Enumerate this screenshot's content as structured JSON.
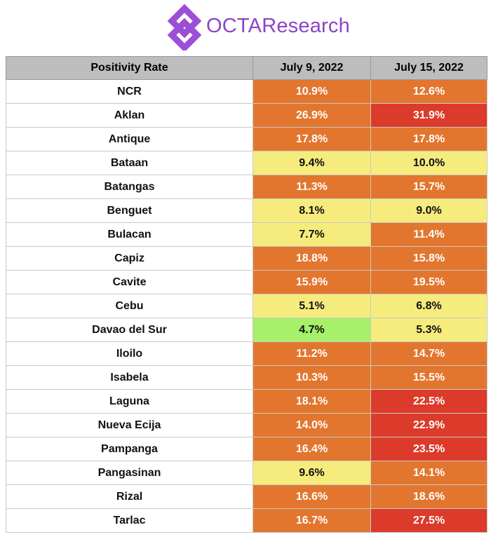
{
  "brand": {
    "name": "OCTAResearch",
    "logo_icon": "octa-diamond-logo-icon",
    "logo_color": "#9b4fd6"
  },
  "colors": {
    "red": "#dc3a2a",
    "orange": "#e2762e",
    "yellow": "#f6ec7e",
    "green": "#a6f06a",
    "header": "#bdbdbd"
  },
  "chart_data": {
    "type": "table",
    "columns": [
      "Positivity Rate",
      "July 9, 2022",
      "July 15, 2022"
    ],
    "rows": [
      {
        "region": "NCR",
        "values": [
          "10.9%",
          "12.6%"
        ],
        "levels": [
          "orange",
          "orange"
        ]
      },
      {
        "region": "Aklan",
        "values": [
          "26.9%",
          "31.9%"
        ],
        "levels": [
          "orange",
          "red"
        ]
      },
      {
        "region": "Antique",
        "values": [
          "17.8%",
          "17.8%"
        ],
        "levels": [
          "orange",
          "orange"
        ]
      },
      {
        "region": "Bataan",
        "values": [
          "9.4%",
          "10.0%"
        ],
        "levels": [
          "yellow",
          "yellow"
        ]
      },
      {
        "region": "Batangas",
        "values": [
          "11.3%",
          "15.7%"
        ],
        "levels": [
          "orange",
          "orange"
        ]
      },
      {
        "region": "Benguet",
        "values": [
          "8.1%",
          "9.0%"
        ],
        "levels": [
          "yellow",
          "yellow"
        ]
      },
      {
        "region": "Bulacan",
        "values": [
          "7.7%",
          "11.4%"
        ],
        "levels": [
          "yellow",
          "orange"
        ]
      },
      {
        "region": "Capiz",
        "values": [
          "18.8%",
          "15.8%"
        ],
        "levels": [
          "orange",
          "orange"
        ]
      },
      {
        "region": "Cavite",
        "values": [
          "15.9%",
          "19.5%"
        ],
        "levels": [
          "orange",
          "orange"
        ]
      },
      {
        "region": "Cebu",
        "values": [
          "5.1%",
          "6.8%"
        ],
        "levels": [
          "yellow",
          "yellow"
        ]
      },
      {
        "region": "Davao del Sur",
        "values": [
          "4.7%",
          "5.3%"
        ],
        "levels": [
          "green",
          "yellow"
        ]
      },
      {
        "region": "Iloilo",
        "values": [
          "11.2%",
          "14.7%"
        ],
        "levels": [
          "orange",
          "orange"
        ]
      },
      {
        "region": "Isabela",
        "values": [
          "10.3%",
          "15.5%"
        ],
        "levels": [
          "orange",
          "orange"
        ]
      },
      {
        "region": "Laguna",
        "values": [
          "18.1%",
          "22.5%"
        ],
        "levels": [
          "orange",
          "red"
        ]
      },
      {
        "region": "Nueva Ecija",
        "values": [
          "14.0%",
          "22.9%"
        ],
        "levels": [
          "orange",
          "red"
        ]
      },
      {
        "region": "Pampanga",
        "values": [
          "16.4%",
          "23.5%"
        ],
        "levels": [
          "orange",
          "red"
        ]
      },
      {
        "region": "Pangasinan",
        "values": [
          "9.6%",
          "14.1%"
        ],
        "levels": [
          "yellow",
          "orange"
        ]
      },
      {
        "region": "Rizal",
        "values": [
          "16.6%",
          "18.6%"
        ],
        "levels": [
          "orange",
          "orange"
        ]
      },
      {
        "region": "Tarlac",
        "values": [
          "16.7%",
          "27.5%"
        ],
        "levels": [
          "orange",
          "red"
        ]
      }
    ]
  }
}
